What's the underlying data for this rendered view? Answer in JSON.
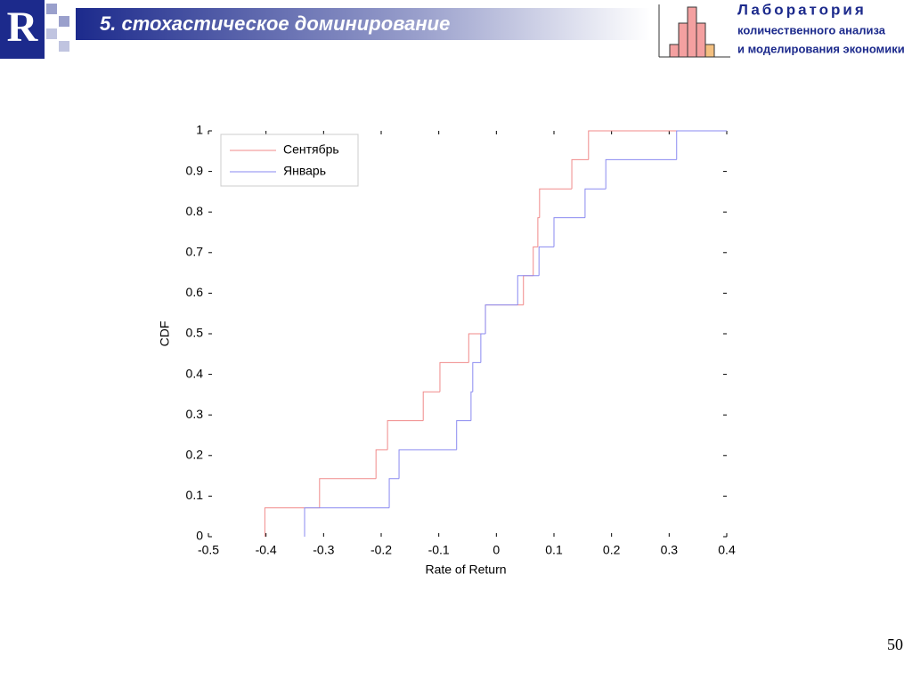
{
  "slide": {
    "title": "5. стохастическое доминирование",
    "lab_title": "Лаборатория",
    "lab_line1": "количественного анализа",
    "lab_line2": "и моделирования экономики",
    "page_number": "50"
  },
  "chart_data": {
    "type": "step",
    "xlabel": "Rate of Return",
    "ylabel": "CDF",
    "xlim": [
      -0.5,
      0.4
    ],
    "ylim": [
      0,
      1
    ],
    "xticks": [
      -0.5,
      -0.4,
      -0.3,
      -0.2,
      -0.1,
      0,
      0.1,
      0.2,
      0.3,
      0.4
    ],
    "yticks": [
      0,
      0.1,
      0.2,
      0.3,
      0.4,
      0.5,
      0.6,
      0.7,
      0.8,
      0.9,
      1
    ],
    "legend": "upper-left",
    "grid": false,
    "series": [
      {
        "name": "Сентябрь",
        "color": "#f08a8a",
        "x": [
          -0.402,
          -0.307,
          -0.209,
          -0.189,
          -0.127,
          -0.098,
          -0.048,
          -0.019,
          0.047,
          0.064,
          0.072,
          0.075,
          0.131,
          0.16
        ],
        "values": [
          0.071,
          0.143,
          0.214,
          0.286,
          0.357,
          0.429,
          0.5,
          0.571,
          0.643,
          0.714,
          0.786,
          0.857,
          0.929,
          1
        ]
      },
      {
        "name": "Январь",
        "color": "#8a8af0",
        "x": [
          -0.333,
          -0.186,
          -0.169,
          -0.069,
          -0.044,
          -0.041,
          -0.027,
          -0.019,
          0.037,
          0.074,
          0.1,
          0.154,
          0.19,
          0.313
        ],
        "values": [
          0.071,
          0.143,
          0.214,
          0.286,
          0.357,
          0.429,
          0.5,
          0.571,
          0.643,
          0.714,
          0.786,
          0.857,
          0.929,
          1
        ]
      }
    ]
  }
}
